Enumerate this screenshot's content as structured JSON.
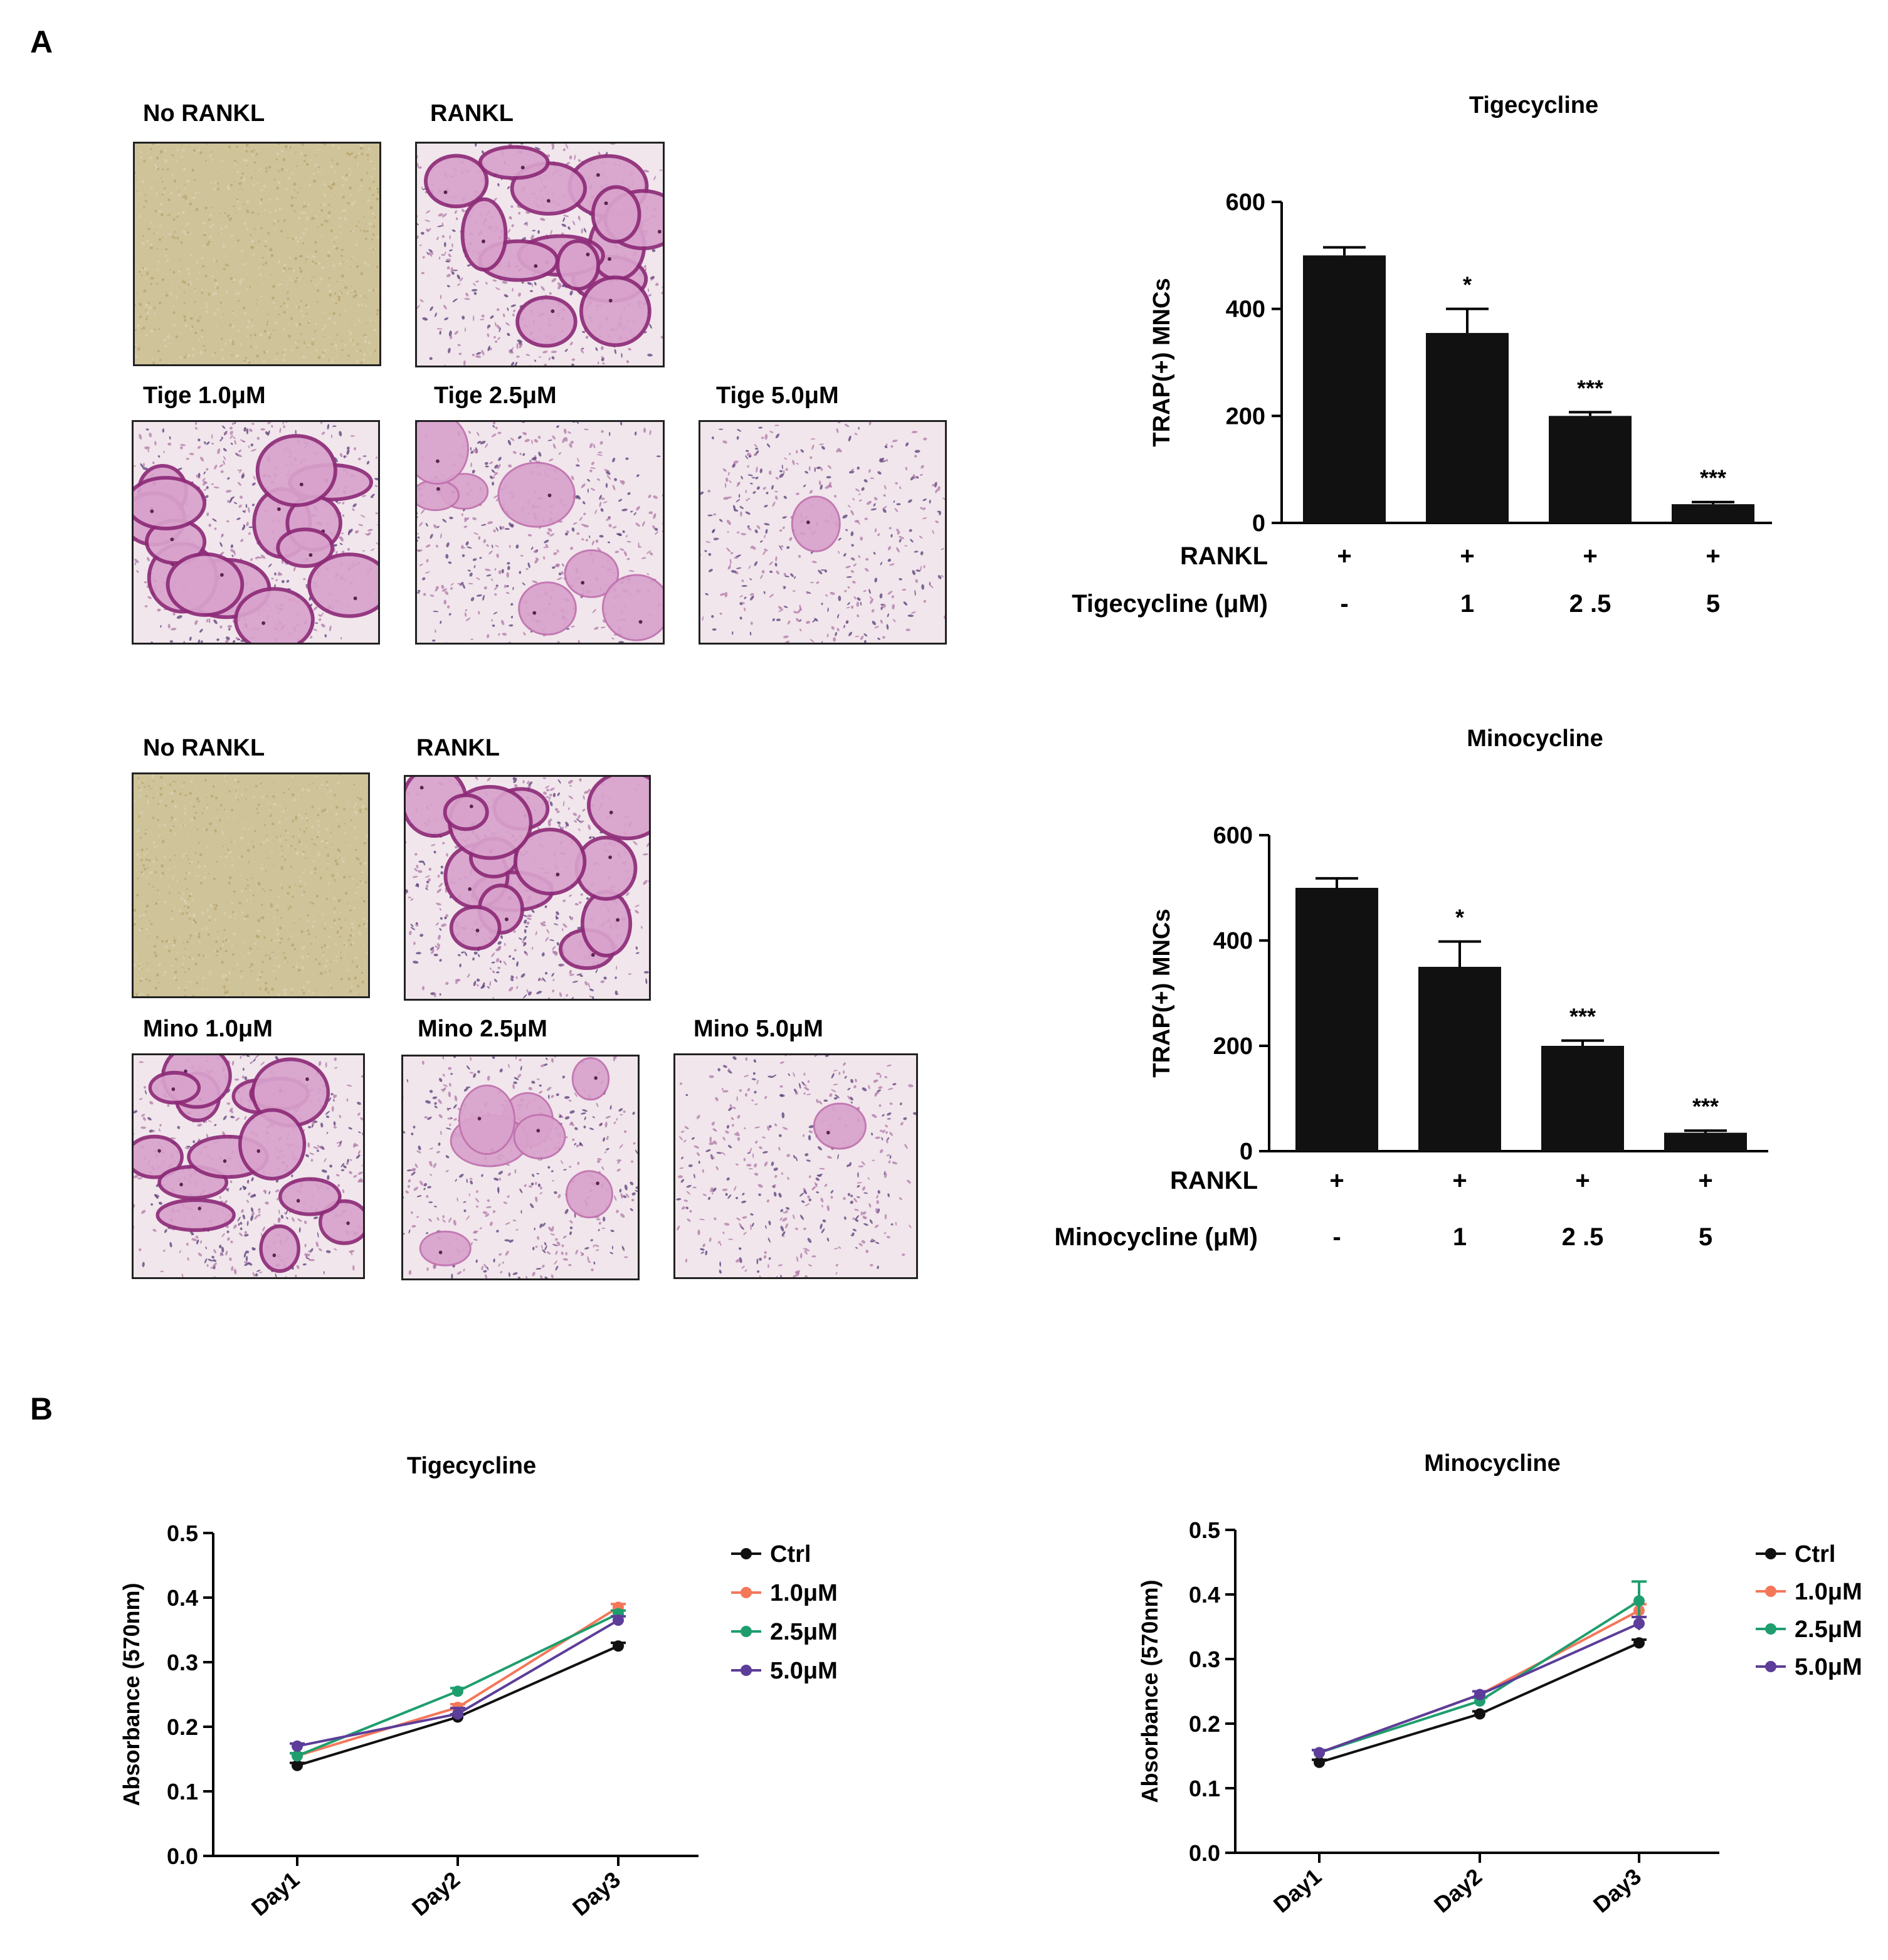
{
  "panels": {
    "a": "A",
    "b": "B"
  },
  "colors": {
    "bar": "#111111",
    "ctrl": "#111111",
    "c1": "#F4775A",
    "c25": "#1E9E6E",
    "c5": "#5C3D99",
    "pale_bg": "#CFC39A",
    "stain": "#B0448F",
    "cell_bg": "#F1E6EC"
  },
  "micrographs": {
    "tige": {
      "no_rankl": {
        "label": "No RANKL",
        "style": "pale"
      },
      "rankl": {
        "label": "RANKL",
        "style": "dense"
      },
      "d1": {
        "label": "Tige 1.0μM",
        "style": "dense"
      },
      "d25": {
        "label": "Tige 2.5μM",
        "style": "medium"
      },
      "d5": {
        "label": "Tige 5.0μM",
        "style": "sparse"
      }
    },
    "mino": {
      "no_rankl": {
        "label": "No RANKL",
        "style": "pale"
      },
      "rankl": {
        "label": "RANKL",
        "style": "dense"
      },
      "d1": {
        "label": "Mino 1.0μM",
        "style": "dense"
      },
      "d25": {
        "label": "Mino 2.5μM",
        "style": "medium"
      },
      "d5": {
        "label": "Mino 5.0μM",
        "style": "sparse"
      }
    }
  },
  "chart_data": [
    {
      "id": "bar_tige",
      "type": "bar",
      "title": "Tigecycline",
      "ylabel": "TRAP(+) MNCs",
      "ylim": [
        0,
        600
      ],
      "yticks": [
        0,
        200,
        400,
        600
      ],
      "values": [
        500,
        355,
        200,
        35
      ],
      "errors": [
        15,
        45,
        7,
        4
      ],
      "significance": [
        "",
        "*",
        "***",
        "***"
      ],
      "row_labels": [
        "RANKL",
        "Tigecycline (μM)"
      ],
      "rankl_row": [
        "+",
        "+",
        "+",
        "+"
      ],
      "dose_row": [
        "-",
        "1",
        "2 .5",
        "5"
      ]
    },
    {
      "id": "bar_mino",
      "type": "bar",
      "title": "Minocycline",
      "ylabel": "TRAP(+) MNCs",
      "ylim": [
        0,
        600
      ],
      "yticks": [
        0,
        200,
        400,
        600
      ],
      "values": [
        500,
        350,
        200,
        35
      ],
      "errors": [
        18,
        48,
        10,
        4
      ],
      "significance": [
        "",
        "*",
        "***",
        "***"
      ],
      "row_labels": [
        "RANKL",
        "Minocycline (μM)"
      ],
      "rankl_row": [
        "+",
        "+",
        "+",
        "+"
      ],
      "dose_row": [
        "-",
        "1",
        "2 .5",
        "5"
      ]
    },
    {
      "id": "line_tige",
      "type": "line",
      "title": "Tigecycline",
      "ylabel": "Absorbance (570nm)",
      "ylim": [
        0,
        0.5
      ],
      "yticks": [
        "0.0",
        "0.1",
        "0.2",
        "0.3",
        "0.4",
        "0.5"
      ],
      "categories": [
        "Day1",
        "Day2",
        "Day3"
      ],
      "series": [
        {
          "name": "Ctrl",
          "color": "#111111",
          "values": [
            0.14,
            0.215,
            0.325
          ],
          "errors": [
            0.004,
            0.004,
            0.005
          ]
        },
        {
          "name": "1.0μM",
          "color": "#F4775A",
          "values": [
            0.155,
            0.23,
            0.385
          ],
          "errors": [
            0.004,
            0.005,
            0.005
          ]
        },
        {
          "name": "2.5μM",
          "color": "#1E9E6E",
          "values": [
            0.155,
            0.255,
            0.375
          ],
          "errors": [
            0.004,
            0.005,
            0.005
          ]
        },
        {
          "name": "5.0μM",
          "color": "#5C3D99",
          "values": [
            0.17,
            0.22,
            0.365
          ],
          "errors": [
            0.004,
            0.009,
            0.006
          ]
        }
      ],
      "legend": "right"
    },
    {
      "id": "line_mino",
      "type": "line",
      "title": "Minocycline",
      "ylabel": "Absorbance (570nm)",
      "ylim": [
        0,
        0.5
      ],
      "yticks": [
        "0.0",
        "0.1",
        "0.2",
        "0.3",
        "0.4",
        "0.5"
      ],
      "categories": [
        "Day1",
        "Day2",
        "Day3"
      ],
      "series": [
        {
          "name": "Ctrl",
          "color": "#111111",
          "values": [
            0.14,
            0.215,
            0.325
          ],
          "errors": [
            0.004,
            0.004,
            0.005
          ]
        },
        {
          "name": "1.0μM",
          "color": "#F4775A",
          "values": [
            0.155,
            0.245,
            0.375
          ],
          "errors": [
            0.004,
            0.005,
            0.01
          ]
        },
        {
          "name": "2.5μM",
          "color": "#1E9E6E",
          "values": [
            0.155,
            0.235,
            0.39
          ],
          "errors": [
            0.004,
            0.005,
            0.03
          ]
        },
        {
          "name": "5.0μM",
          "color": "#5C3D99",
          "values": [
            0.155,
            0.245,
            0.355
          ],
          "errors": [
            0.004,
            0.005,
            0.01
          ]
        }
      ],
      "legend": "right"
    }
  ]
}
